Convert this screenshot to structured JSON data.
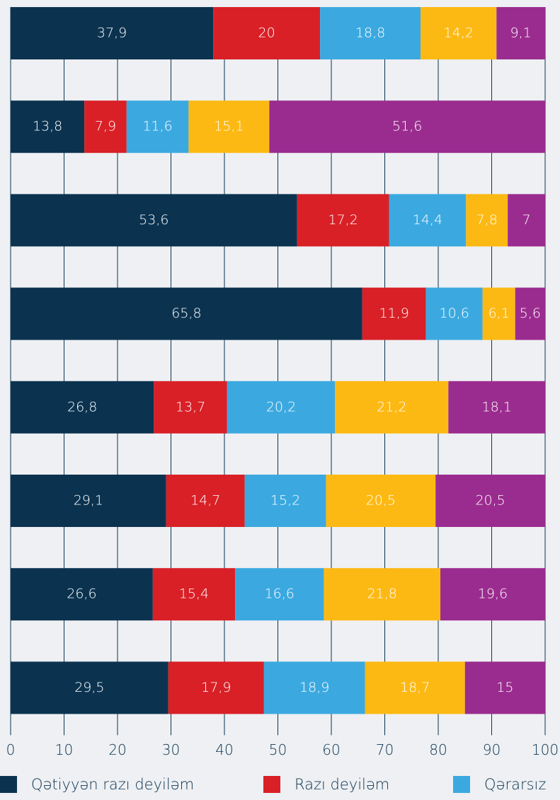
{
  "chart_data": {
    "type": "stacked-bar-horizontal",
    "xlim": [
      0,
      100
    ],
    "xticks": [
      0,
      10,
      20,
      30,
      40,
      50,
      60,
      70,
      80,
      90,
      100
    ],
    "grid": true,
    "series": [
      {
        "name": "Qətiyyən razı deyiləm",
        "color": "#0b3350",
        "values": [
          37.9,
          13.8,
          53.6,
          65.8,
          26.8,
          29.1,
          26.6,
          29.5
        ],
        "value_labels": [
          "37,9",
          "13,8",
          "53,6",
          "65,8",
          "26,8",
          "29,1",
          "26,6",
          "29,5"
        ]
      },
      {
        "name": "Razı deyiləm",
        "color": "#d92027",
        "values": [
          20,
          7.9,
          17.2,
          11.9,
          13.7,
          14.7,
          15.4,
          17.9
        ],
        "value_labels": [
          "20",
          "7,9",
          "17,2",
          "11,9",
          "13,7",
          "14,7",
          "15,4",
          "17,9"
        ]
      },
      {
        "name": "Qərarsız",
        "color": "#3ba9e0",
        "values": [
          18.8,
          11.6,
          14.4,
          10.6,
          20.2,
          15.2,
          16.6,
          18.9
        ],
        "value_labels": [
          "18,8",
          "11,6",
          "14,4",
          "10,6",
          "20,2",
          "15,2",
          "16,6",
          "18,9"
        ]
      },
      {
        "color": "#fdb913",
        "values": [
          14.2,
          15.1,
          7.8,
          6.1,
          21.2,
          20.5,
          21.8,
          18.7
        ],
        "value_labels": [
          "14,2",
          "15,1",
          "7,8",
          "6,1",
          "21,2",
          "20,5",
          "21,8",
          "18,7"
        ]
      },
      {
        "color": "#9b2c8f",
        "values": [
          9.1,
          51.6,
          7,
          5.6,
          18.1,
          20.5,
          19.6,
          15
        ],
        "value_labels": [
          "9,1",
          "51,6",
          "7",
          "5,6",
          "18,1",
          "20,5",
          "19,6",
          "15"
        ]
      }
    ]
  }
}
